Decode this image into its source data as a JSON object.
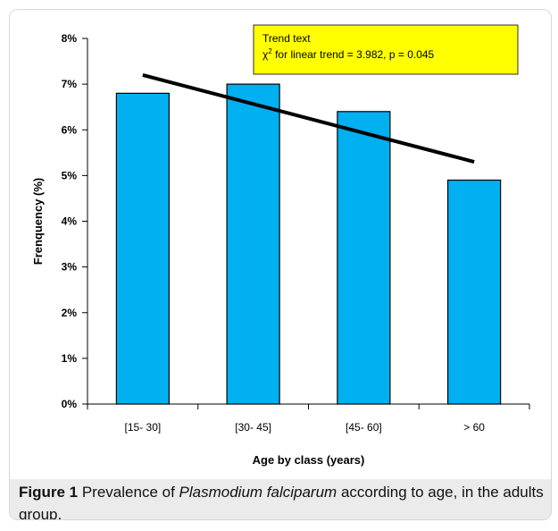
{
  "chart_data": {
    "type": "bar",
    "categories": [
      "[15- 30]",
      "[30- 45]",
      "[45- 60]",
      "> 60"
    ],
    "values": [
      6.8,
      7.0,
      6.4,
      4.9
    ],
    "value_unit": "%",
    "trend_line": {
      "start": 7.2,
      "end": 5.3
    },
    "ylabel": "Frenquency (%)",
    "xlabel": "Age by class (years)",
    "ylim": [
      0,
      8
    ],
    "yticks": [
      "0%",
      "1%",
      "2%",
      "3%",
      "4%",
      "5%",
      "6%",
      "7%",
      "8%"
    ],
    "annotation": {
      "line1": "Trend text",
      "line2_symbol": "χ",
      "line2_sup": "2",
      "line2_rest": " for linear trend = 3.982, p = 0.045"
    },
    "grid": false,
    "legend": "none",
    "bar_color": "#00b0f0",
    "annotation_color": "#ffff00"
  },
  "caption": {
    "label": "Figure 1",
    "pre": " Prevalence of ",
    "italic": "Plasmodium falciparum",
    "post": " according to age, in the adults group."
  }
}
